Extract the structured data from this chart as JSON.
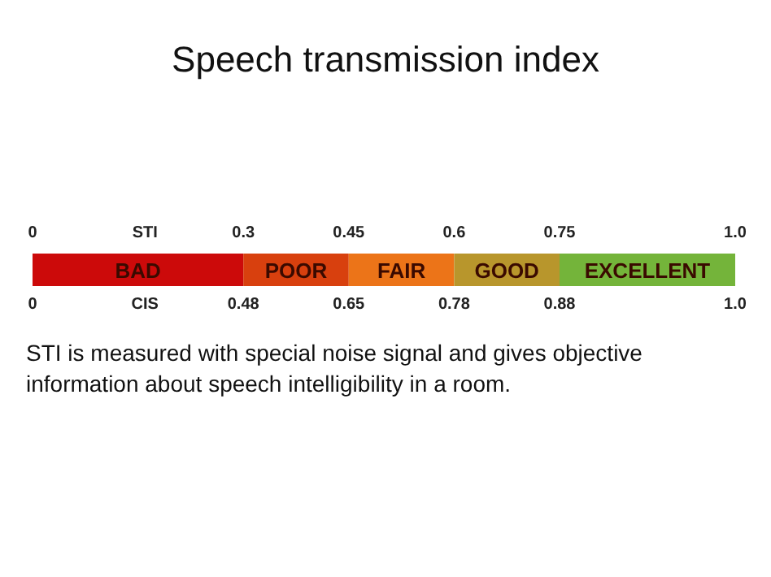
{
  "chart_data": {
    "type": "bar",
    "orientation": "horizontal",
    "stacked": true,
    "title": "Speech transmission index",
    "categories": [
      null
    ],
    "series": [
      {
        "name": "BAD",
        "color": "#cc0a0a",
        "values": [
          0.3
        ]
      },
      {
        "name": "POOR",
        "color": "#d8400e",
        "values": [
          0.15
        ]
      },
      {
        "name": "FAIR",
        "color": "#ec7418",
        "values": [
          0.15
        ]
      },
      {
        "name": "GOOD",
        "color": "#b8962c",
        "values": [
          0.15
        ]
      },
      {
        "name": "EXCELLENT",
        "color": "#74b43a",
        "values": [
          0.25
        ]
      }
    ],
    "xlabel": "STI",
    "xlim": [
      0,
      1
    ],
    "xticks": [
      0,
      0.3,
      0.45,
      0.6,
      0.75,
      {
        "value": 1,
        "label": "1.0"
      }
    ],
    "annotations": [
      "CIS",
      "0",
      "0.48",
      "0.65",
      "0.78",
      "0.88",
      "1.0",
      "STI is measured with special noise signal and gives objective information about speech intelligibility in a room."
    ]
  }
}
